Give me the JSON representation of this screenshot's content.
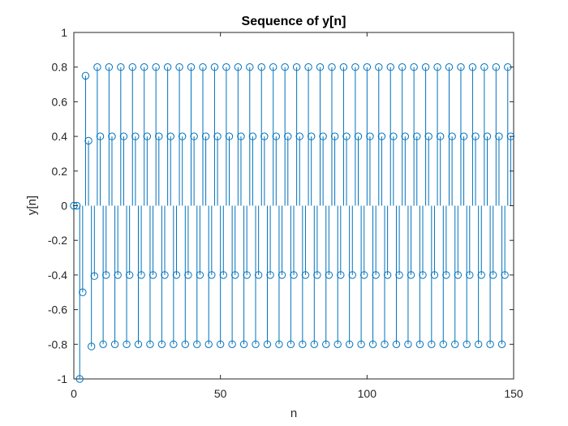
{
  "chart_data": {
    "type": "stem",
    "title": "Sequence of y[n]",
    "xlabel": "n",
    "ylabel": "y[n]",
    "xlim": [
      0,
      150
    ],
    "ylim": [
      -1,
      1
    ],
    "xticks": [
      0,
      50,
      100,
      150
    ],
    "xtick_labels": [
      "0",
      "50",
      "100",
      "150"
    ],
    "yticks": [
      -1,
      -0.8,
      -0.6,
      -0.4,
      -0.2,
      0,
      0.2,
      0.4,
      0.6,
      0.8,
      1
    ],
    "ytick_labels": [
      "-1",
      "-0.8",
      "-0.6",
      "-0.4",
      "-0.2",
      "0",
      "0.2",
      "0.4",
      "0.6",
      "0.8",
      "1"
    ],
    "grid": false,
    "marker": "circle",
    "color": "#0072BD",
    "n_start": 0,
    "initial_values": [
      0,
      0,
      -1,
      -0.5,
      0.75,
      0.375,
      -0.8125,
      -0.40625
    ],
    "periodic_pattern": [
      0.8,
      0.4,
      -0.8,
      -0.4
    ],
    "n_end": 149
  }
}
